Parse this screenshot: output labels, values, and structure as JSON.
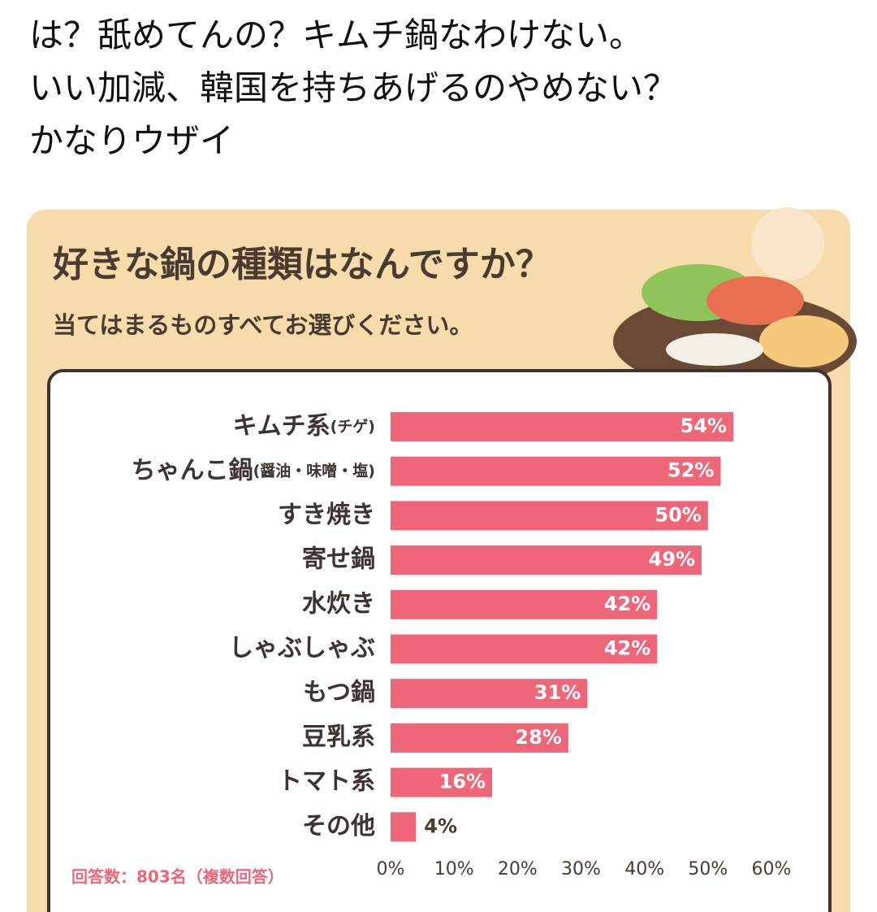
{
  "post": {
    "lines": [
      "は？舐めてんの？キムチ鍋なわけない。",
      "いい加減、韓国を持ちあげるのやめない？",
      "かなりウザイ"
    ]
  },
  "chart_data": {
    "type": "barh",
    "title": "好きな鍋の種類はなんですか？",
    "subtitle": "当てはまるものすべてお選びください。",
    "note": "回答数：803名（複数回答）",
    "categories": [
      "キムチ系(チゲ)",
      "ちゃんこ鍋(醤油・味噌・塩)",
      "すき焼き",
      "寄せ鍋",
      "水炊き",
      "しゃぶしゃぶ",
      "もつ鍋",
      "豆乳系",
      "トマト系",
      "その他"
    ],
    "values": [
      54,
      52,
      50,
      49,
      42,
      42,
      31,
      28,
      16,
      4
    ],
    "value_labels": [
      "54%",
      "52%",
      "50%",
      "49%",
      "42%",
      "42%",
      "31%",
      "28%",
      "16%",
      "4%"
    ],
    "color": "#f06679",
    "xlim": [
      0,
      60
    ],
    "xticks": [
      {
        "value": 0,
        "label": "0%"
      },
      {
        "value": 10,
        "label": "10%"
      },
      {
        "value": 20,
        "label": "20%"
      },
      {
        "value": 30,
        "label": "30%"
      },
      {
        "value": 40,
        "label": "40%"
      },
      {
        "value": 50,
        "label": "50%"
      },
      {
        "value": 60,
        "label": "60%"
      }
    ]
  }
}
